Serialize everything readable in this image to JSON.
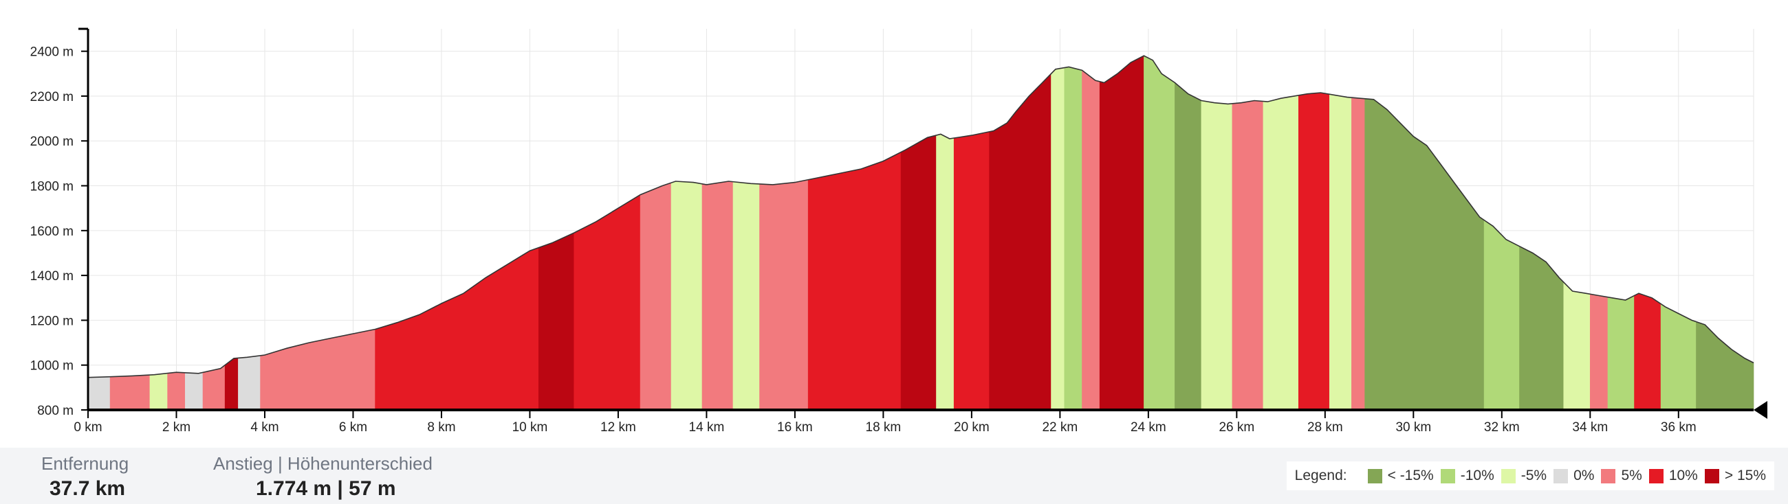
{
  "chart_data": {
    "type": "area",
    "title": "",
    "xlabel": "",
    "ylabel": "",
    "x_unit": "km",
    "y_unit": "m",
    "xlim": [
      0,
      37.7
    ],
    "ylim": [
      800,
      2500
    ],
    "x_ticks": [
      0,
      2,
      4,
      6,
      8,
      10,
      12,
      14,
      16,
      18,
      20,
      22,
      24,
      26,
      28,
      30,
      32,
      34,
      36
    ],
    "x_tick_labels": [
      "0 km",
      "2 km",
      "4 km",
      "6 km",
      "8 km",
      "10 km",
      "12 km",
      "14 km",
      "16 km",
      "18 km",
      "20 km",
      "22 km",
      "24 km",
      "26 km",
      "28 km",
      "30 km",
      "32 km",
      "34 km",
      "36 km"
    ],
    "y_ticks": [
      800,
      1000,
      1200,
      1400,
      1600,
      1800,
      2000,
      2200,
      2400
    ],
    "y_tick_labels": [
      "800 m",
      "1000 m",
      "1200 m",
      "1400 m",
      "1600 m",
      "1800 m",
      "2000 m",
      "2200 m",
      "2400 m"
    ],
    "grid": true,
    "elevation_profile": {
      "x": [
        0,
        0.5,
        1,
        1.5,
        2,
        2.5,
        3,
        3.3,
        3.6,
        4,
        4.5,
        5,
        5.5,
        6,
        6.5,
        7,
        7.5,
        8,
        8.5,
        9,
        9.5,
        10,
        10.5,
        11,
        11.5,
        12,
        12.5,
        13,
        13.3,
        13.7,
        14,
        14.5,
        15,
        15.5,
        16,
        16.5,
        17,
        17.5,
        18,
        18.5,
        19,
        19.3,
        19.5,
        20,
        20.5,
        20.8,
        21,
        21.3,
        21.6,
        21.9,
        22.2,
        22.5,
        22.8,
        23,
        23.3,
        23.6,
        23.9,
        24.1,
        24.3,
        24.6,
        24.9,
        25.2,
        25.5,
        25.8,
        26.1,
        26.4,
        26.7,
        27,
        27.3,
        27.6,
        27.9,
        28.2,
        28.5,
        28.8,
        29.1,
        29.4,
        29.7,
        30,
        30.3,
        30.6,
        30.9,
        31.2,
        31.5,
        31.8,
        32.1,
        32.4,
        32.7,
        33,
        33.3,
        33.6,
        33.9,
        34.2,
        34.5,
        34.8,
        35.1,
        35.4,
        35.7,
        36,
        36.3,
        36.6,
        36.9,
        37.2,
        37.5,
        37.7
      ],
      "y": [
        945,
        948,
        952,
        957,
        968,
        963,
        985,
        1030,
        1035,
        1045,
        1075,
        1100,
        1120,
        1140,
        1160,
        1190,
        1225,
        1275,
        1320,
        1390,
        1450,
        1510,
        1545,
        1590,
        1640,
        1700,
        1760,
        1800,
        1820,
        1815,
        1805,
        1820,
        1810,
        1805,
        1815,
        1835,
        1855,
        1875,
        1910,
        1960,
        2015,
        2030,
        2010,
        2025,
        2045,
        2080,
        2130,
        2200,
        2260,
        2320,
        2330,
        2315,
        2270,
        2260,
        2300,
        2350,
        2380,
        2360,
        2300,
        2260,
        2210,
        2180,
        2170,
        2165,
        2170,
        2180,
        2175,
        2190,
        2200,
        2210,
        2215,
        2205,
        2195,
        2190,
        2185,
        2140,
        2080,
        2020,
        1980,
        1900,
        1820,
        1740,
        1660,
        1620,
        1560,
        1530,
        1500,
        1460,
        1390,
        1330,
        1320,
        1310,
        1300,
        1290,
        1320,
        1300,
        1260,
        1230,
        1200,
        1180,
        1120,
        1070,
        1030,
        1010
      ]
    },
    "gradient_segments": [
      {
        "from": 0,
        "to": 0.5,
        "class": "0%"
      },
      {
        "from": 0.5,
        "to": 1.4,
        "class": "5%"
      },
      {
        "from": 1.4,
        "to": 1.8,
        "class": "-5%"
      },
      {
        "from": 1.8,
        "to": 2.2,
        "class": "5%"
      },
      {
        "from": 2.2,
        "to": 2.6,
        "class": "0%"
      },
      {
        "from": 2.6,
        "to": 3.1,
        "class": "5%"
      },
      {
        "from": 3.1,
        "to": 3.4,
        "class": "> 15%"
      },
      {
        "from": 3.4,
        "to": 3.9,
        "class": "0%"
      },
      {
        "from": 3.9,
        "to": 6.5,
        "class": "5%"
      },
      {
        "from": 6.5,
        "to": 10.2,
        "class": "10%"
      },
      {
        "from": 10.2,
        "to": 11,
        "class": "> 15%"
      },
      {
        "from": 11,
        "to": 12.5,
        "class": "10%"
      },
      {
        "from": 12.5,
        "to": 13.2,
        "class": "5%"
      },
      {
        "from": 13.2,
        "to": 13.9,
        "class": "-5%"
      },
      {
        "from": 13.9,
        "to": 14.6,
        "class": "5%"
      },
      {
        "from": 14.6,
        "to": 15.2,
        "class": "-5%"
      },
      {
        "from": 15.2,
        "to": 16.3,
        "class": "5%"
      },
      {
        "from": 16.3,
        "to": 18.4,
        "class": "10%"
      },
      {
        "from": 18.4,
        "to": 19.2,
        "class": "> 15%"
      },
      {
        "from": 19.2,
        "to": 19.6,
        "class": "-5%"
      },
      {
        "from": 19.6,
        "to": 20.4,
        "class": "10%"
      },
      {
        "from": 20.4,
        "to": 21.8,
        "class": "> 15%"
      },
      {
        "from": 21.8,
        "to": 22.1,
        "class": "-5%"
      },
      {
        "from": 22.1,
        "to": 22.5,
        "class": "-10%"
      },
      {
        "from": 22.5,
        "to": 22.9,
        "class": "5%"
      },
      {
        "from": 22.9,
        "to": 23.9,
        "class": "> 15%"
      },
      {
        "from": 23.9,
        "to": 24.6,
        "class": "-10%"
      },
      {
        "from": 24.6,
        "to": 25.2,
        "class": "< -15%"
      },
      {
        "from": 25.2,
        "to": 25.9,
        "class": "-5%"
      },
      {
        "from": 25.9,
        "to": 26.6,
        "class": "5%"
      },
      {
        "from": 26.6,
        "to": 27.4,
        "class": "-5%"
      },
      {
        "from": 27.4,
        "to": 28.1,
        "class": "10%"
      },
      {
        "from": 28.1,
        "to": 28.6,
        "class": "-5%"
      },
      {
        "from": 28.6,
        "to": 28.9,
        "class": "5%"
      },
      {
        "from": 28.9,
        "to": 31.6,
        "class": "< -15%"
      },
      {
        "from": 31.6,
        "to": 32.4,
        "class": "-10%"
      },
      {
        "from": 32.4,
        "to": 33.4,
        "class": "< -15%"
      },
      {
        "from": 33.4,
        "to": 34,
        "class": "-5%"
      },
      {
        "from": 34,
        "to": 34.4,
        "class": "5%"
      },
      {
        "from": 34.4,
        "to": 35,
        "class": "-10%"
      },
      {
        "from": 35,
        "to": 35.6,
        "class": "10%"
      },
      {
        "from": 35.6,
        "to": 36.4,
        "class": "-10%"
      },
      {
        "from": 36.4,
        "to": 37.7,
        "class": "< -15%"
      }
    ],
    "legend": {
      "position": "bottom-right",
      "title": "Legend:",
      "items": [
        {
          "label": "< -15%",
          "color": "#84a655"
        },
        {
          "label": "-10%",
          "color": "#b0d978"
        },
        {
          "label": "-5%",
          "color": "#def7a6"
        },
        {
          "label": "0%",
          "color": "#dcdcdc"
        },
        {
          "label": "5%",
          "color": "#f27a7e"
        },
        {
          "label": "10%",
          "color": "#e51a24"
        },
        {
          "label": "> 15%",
          "color": "#bb0612"
        }
      ]
    }
  },
  "stats": {
    "distance_label": "Entfernung",
    "distance_value": "37.7 km",
    "ascent_label": "Anstieg | Höhenunterschied",
    "ascent_value": "1.774 m | 57 m"
  }
}
